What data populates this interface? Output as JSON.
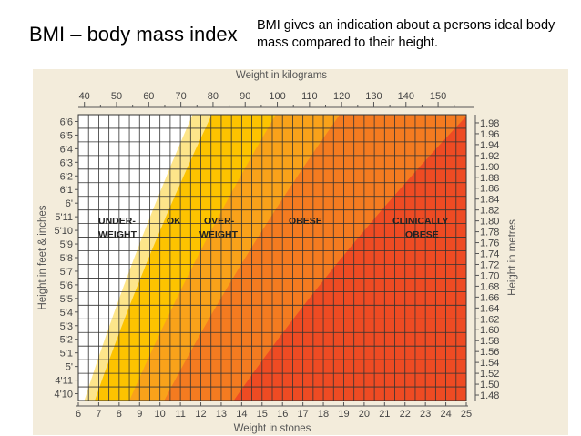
{
  "slide": {
    "title": "BMI – body mass index",
    "note": "BMI gives an indication about a persons ideal body mass compared to their height."
  },
  "colors": {
    "background_panel": "#f3ecdb",
    "underweight": "#ffffff",
    "ok_light": "#fde58a",
    "ok": "#fdc300",
    "overweight": "#f9a21a",
    "obese": "#f47b20",
    "clinically_obese": "#ee4b23",
    "grid": "#333333"
  },
  "chart_data": {
    "type": "heatmap",
    "x_top_label": "Weight in kilograms",
    "x_bottom_label": "Weight in stones",
    "y_left_label": "Height in feet & inches",
    "y_right_label": "Height in metres",
    "stones_range": [
      6,
      25
    ],
    "metres_range": [
      1.47,
      1.995
    ],
    "x_ticks_kg": [
      "40",
      "50",
      "60",
      "70",
      "80",
      "90",
      "100",
      "110",
      "120",
      "130",
      "140",
      "150"
    ],
    "x_ticks_kg_values": [
      40,
      50,
      60,
      70,
      80,
      90,
      100,
      110,
      120,
      130,
      140,
      150
    ],
    "x_ticks_stones": [
      "6",
      "7",
      "8",
      "9",
      "10",
      "11",
      "12",
      "13",
      "14",
      "15",
      "16",
      "17",
      "18",
      "19",
      "20",
      "21",
      "22",
      "23",
      "24",
      "25"
    ],
    "y_ticks_feet": [
      "6'6",
      "6'5",
      "6'4",
      "6'3",
      "6'2",
      "6'1",
      "6'",
      "5'11",
      "5'10",
      "5'9",
      "5'8",
      "5'7",
      "5'6",
      "5'5",
      "5'4",
      "5'3",
      "5'2",
      "5'1",
      "5'",
      "4'11",
      "4'10"
    ],
    "y_ticks_metres": [
      "1.98",
      "1.96",
      "1.94",
      "1.92",
      "1.90",
      "1.88",
      "1.86",
      "1.84",
      "1.82",
      "1.80",
      "1.78",
      "1.76",
      "1.74",
      "1.72",
      "1.70",
      "1.68",
      "1.66",
      "1.64",
      "1.62",
      "1.60",
      "1.58",
      "1.56",
      "1.54",
      "1.52",
      "1.50",
      "1.48"
    ],
    "zones": [
      {
        "label": "UNDER-\nWEIGHT",
        "bmi_max": 18.5
      },
      {
        "label": "OK",
        "bmi_max": 25
      },
      {
        "label": "OVER-\nWEIGHT",
        "bmi_max": 30
      },
      {
        "label": "OBESE",
        "bmi_max": 40
      },
      {
        "label": "CLINICALLY\nOBESE",
        "bmi_max": null
      }
    ],
    "ok_light_band_bmi": [
      18.5,
      20
    ],
    "zone_labels": [
      "UNDER-",
      "WEIGHT",
      "OK",
      "OVER-",
      "WEIGHT",
      "OBESE",
      "CLINICALLY",
      "OBESE"
    ]
  }
}
